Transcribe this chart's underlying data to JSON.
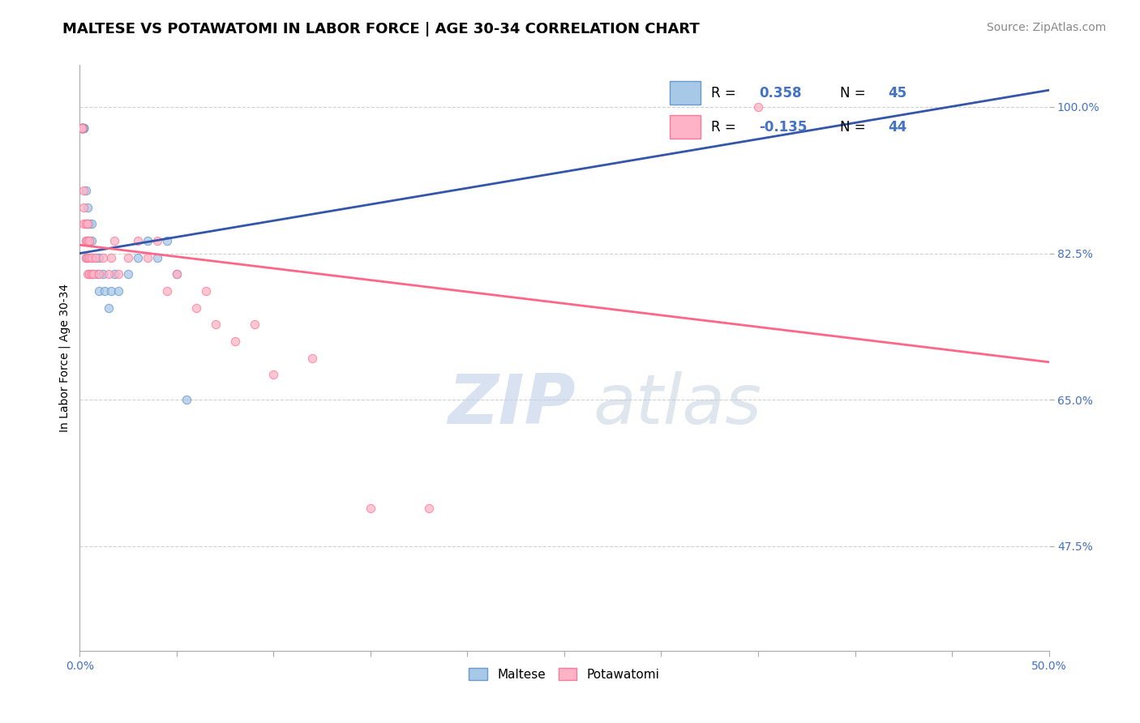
{
  "title": "MALTESE VS POTAWATOMI IN LABOR FORCE | AGE 30-34 CORRELATION CHART",
  "source": "Source: ZipAtlas.com",
  "ylabel": "In Labor Force | Age 30-34",
  "xlim": [
    0.0,
    0.5
  ],
  "ylim": [
    0.35,
    1.05
  ],
  "ytick_positions": [
    0.475,
    0.65,
    0.825,
    1.0
  ],
  "yticklabels": [
    "47.5%",
    "65.0%",
    "82.5%",
    "100.0%"
  ],
  "maltese_color": "#A8C8E8",
  "potawatomi_color": "#FFB3C6",
  "maltese_edge": "#6699CC",
  "potawatomi_edge": "#FF7799",
  "trendline_blue": "#3355AA",
  "trendline_pink": "#FF6688",
  "R_maltese": 0.358,
  "N_maltese": 45,
  "R_potawatomi": -0.135,
  "N_potawatomi": 44,
  "maltese_x": [
    0.001,
    0.001,
    0.001,
    0.001,
    0.001,
    0.001,
    0.001,
    0.001,
    0.002,
    0.002,
    0.002,
    0.002,
    0.002,
    0.003,
    0.003,
    0.003,
    0.003,
    0.004,
    0.004,
    0.004,
    0.004,
    0.005,
    0.005,
    0.005,
    0.006,
    0.006,
    0.006,
    0.007,
    0.008,
    0.009,
    0.01,
    0.01,
    0.012,
    0.013,
    0.015,
    0.016,
    0.018,
    0.02,
    0.025,
    0.03,
    0.035,
    0.04,
    0.045,
    0.05,
    0.055
  ],
  "maltese_y": [
    0.975,
    0.975,
    0.975,
    0.975,
    0.975,
    0.975,
    0.975,
    0.975,
    0.975,
    0.975,
    0.975,
    0.975,
    0.975,
    0.82,
    0.84,
    0.86,
    0.9,
    0.82,
    0.84,
    0.86,
    0.88,
    0.8,
    0.84,
    0.86,
    0.82,
    0.84,
    0.86,
    0.8,
    0.82,
    0.8,
    0.78,
    0.82,
    0.8,
    0.78,
    0.76,
    0.78,
    0.8,
    0.78,
    0.8,
    0.82,
    0.84,
    0.82,
    0.84,
    0.8,
    0.65
  ],
  "potawatomi_x": [
    0.001,
    0.001,
    0.001,
    0.001,
    0.001,
    0.002,
    0.002,
    0.002,
    0.003,
    0.003,
    0.003,
    0.004,
    0.004,
    0.004,
    0.004,
    0.005,
    0.005,
    0.005,
    0.006,
    0.006,
    0.007,
    0.008,
    0.01,
    0.012,
    0.015,
    0.016,
    0.018,
    0.02,
    0.025,
    0.03,
    0.035,
    0.04,
    0.045,
    0.05,
    0.06,
    0.065,
    0.07,
    0.08,
    0.09,
    0.1,
    0.12,
    0.15,
    0.18,
    0.35
  ],
  "potawatomi_y": [
    0.975,
    0.975,
    0.975,
    0.975,
    0.975,
    0.86,
    0.88,
    0.9,
    0.82,
    0.84,
    0.86,
    0.8,
    0.82,
    0.84,
    0.86,
    0.8,
    0.82,
    0.84,
    0.8,
    0.82,
    0.8,
    0.82,
    0.8,
    0.82,
    0.8,
    0.82,
    0.84,
    0.8,
    0.82,
    0.84,
    0.82,
    0.84,
    0.78,
    0.8,
    0.76,
    0.78,
    0.74,
    0.72,
    0.74,
    0.68,
    0.7,
    0.52,
    0.52,
    1.0
  ],
  "watermark_zip": "ZIP",
  "watermark_atlas": "atlas",
  "background_color": "#FFFFFF",
  "grid_color": "#CCCCCC",
  "title_fontsize": 13,
  "axis_label_fontsize": 10,
  "tick_fontsize": 10,
  "source_fontsize": 10,
  "marker_size": 55
}
